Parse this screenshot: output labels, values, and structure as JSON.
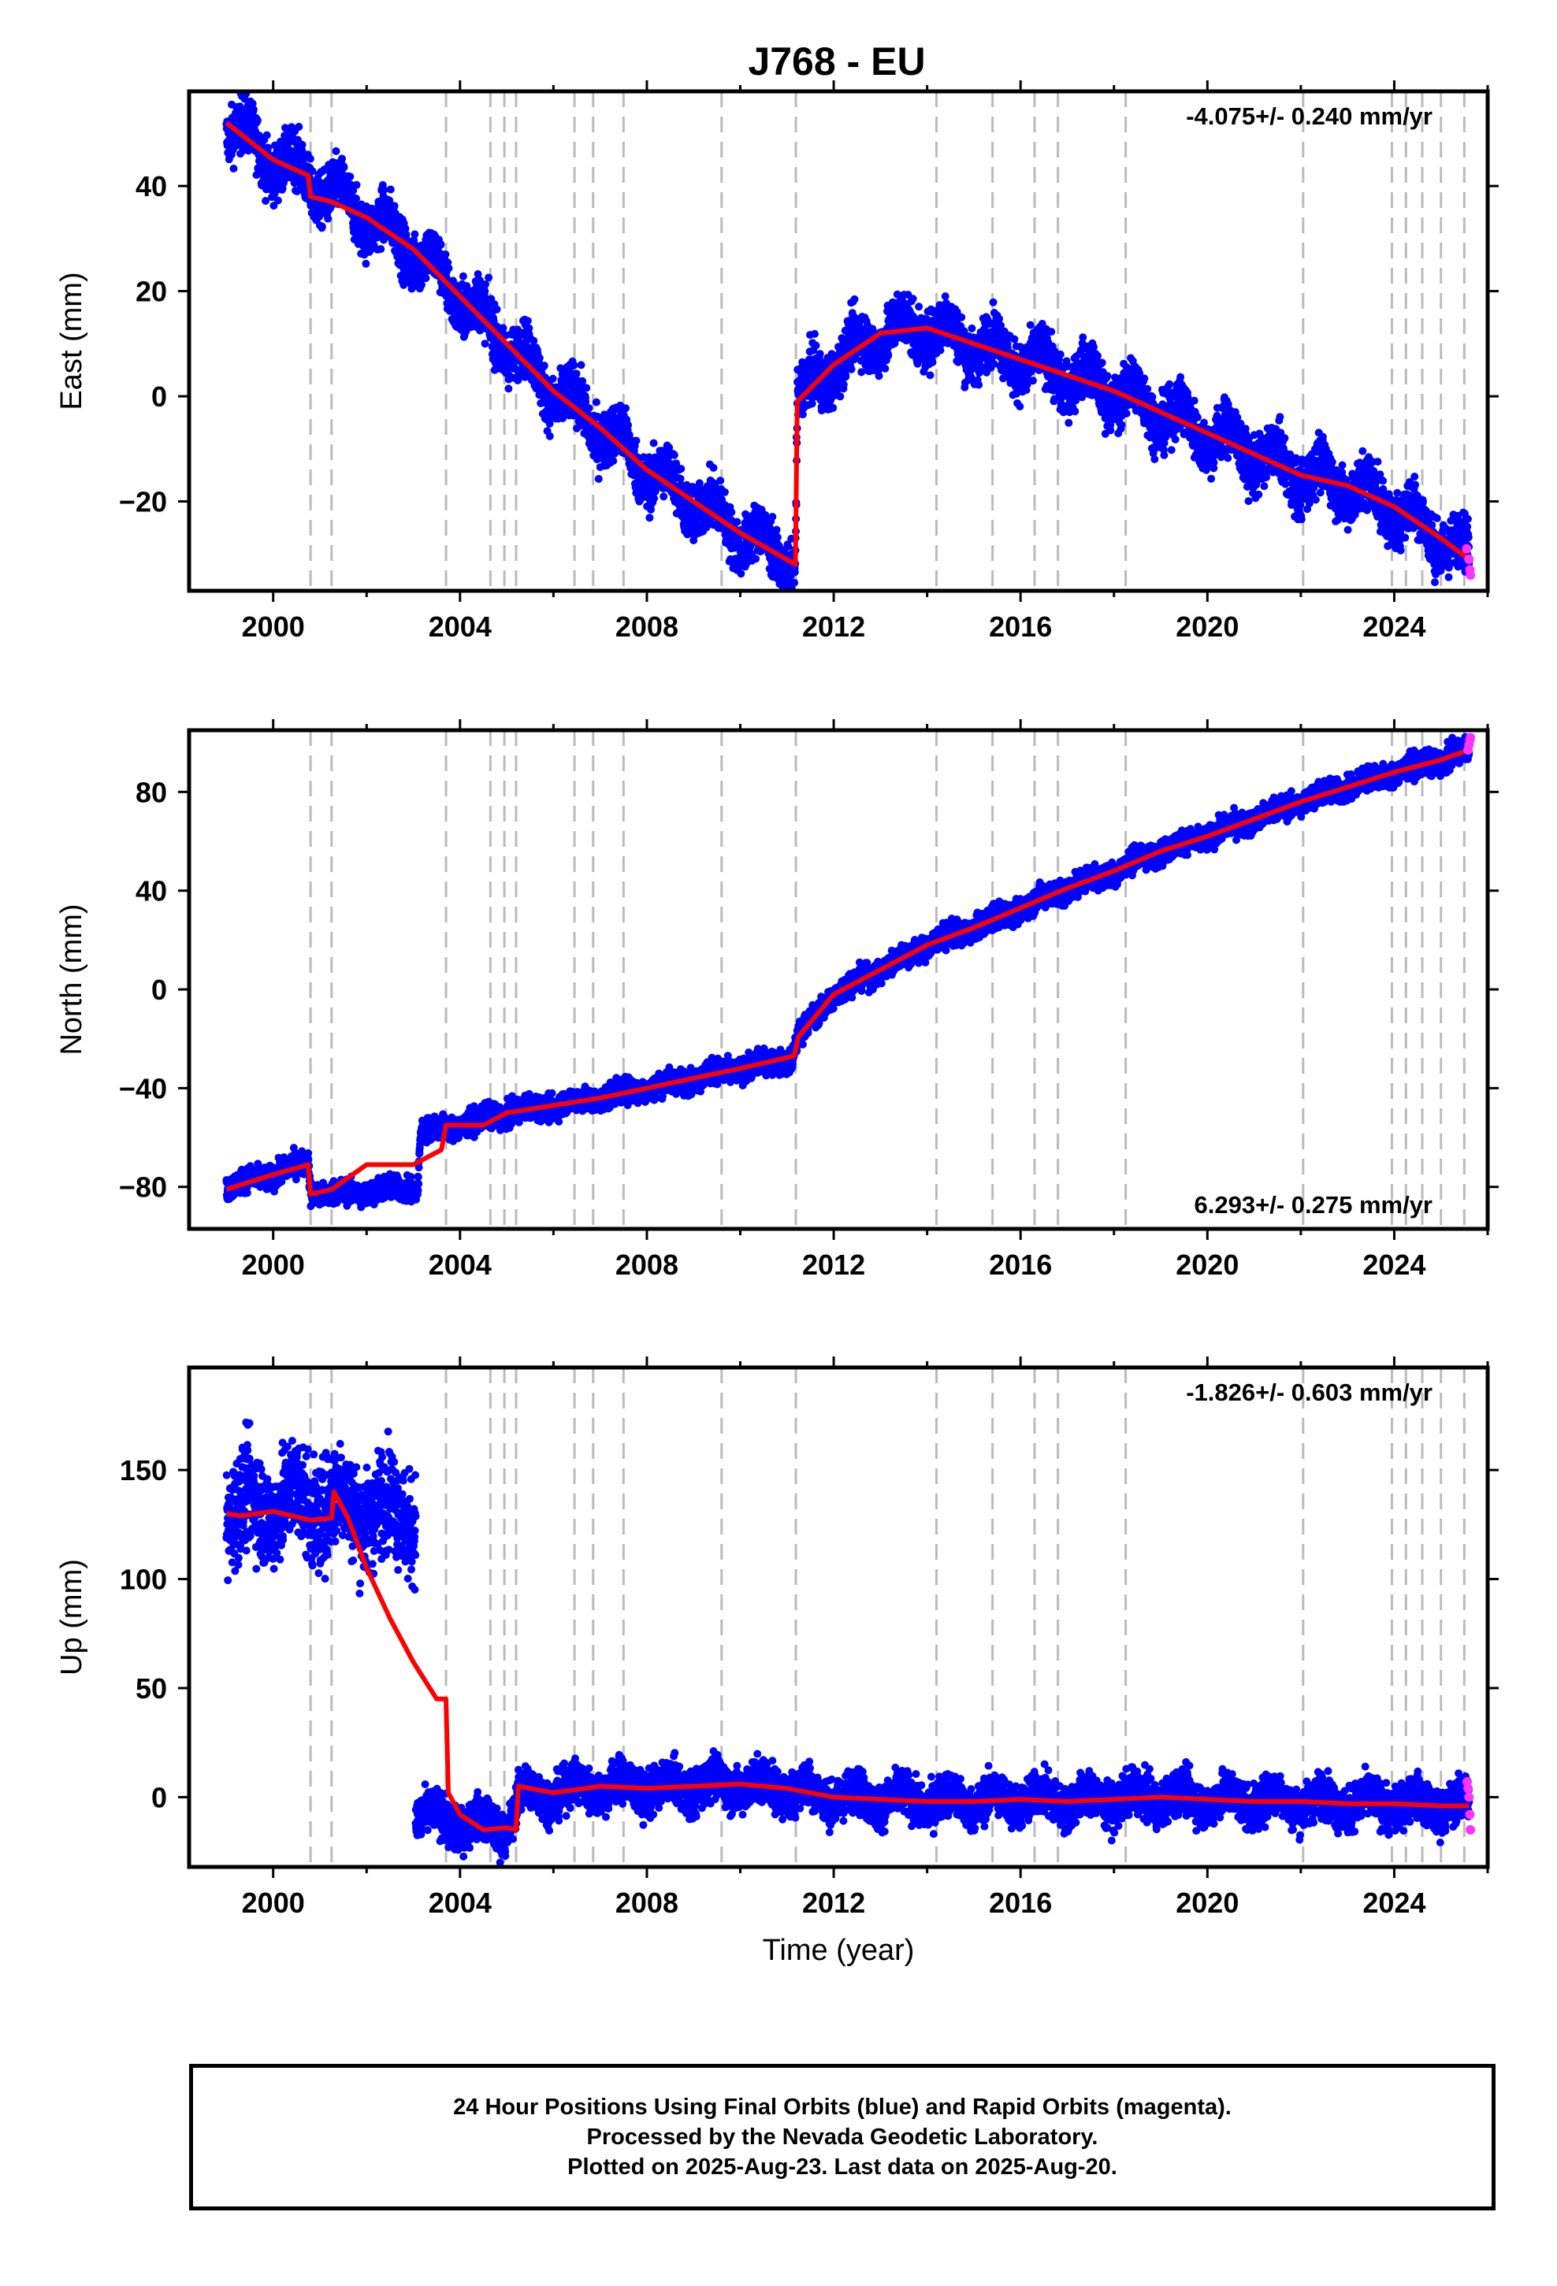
{
  "title": "J768 - EU",
  "colors": {
    "final": "#0000ff",
    "rapid": "#ff33ff",
    "model": "#ff0000",
    "grid": "#bbbbbb",
    "frame": "#000000"
  },
  "chart_data": [
    {
      "type": "scatter",
      "ylabel": "East (mm)",
      "xlim": [
        1998.2,
        2026.0
      ],
      "ylim": [
        -37,
        58
      ],
      "yticks": [
        -20,
        0,
        20,
        40
      ],
      "xticks": [
        2000,
        2004,
        2008,
        2012,
        2016,
        2020,
        2024
      ],
      "rate_label": "-4.075+/- 0.240 mm/yr",
      "rate_position": "top-right",
      "offsets": [
        2000.8,
        2001.25,
        2003.7,
        2004.65,
        2004.95,
        2005.2,
        2006.45,
        2006.85,
        2007.5,
        2009.6,
        2011.19,
        2014.2,
        2015.4,
        2016.3,
        2016.8,
        2018.25,
        2022.05,
        2023.95,
        2024.25,
        2024.6,
        2025.0,
        2025.5
      ],
      "series": [
        {
          "name": "Final Orbits",
          "trend": [
            [
              1999.0,
              52
            ],
            [
              2000.0,
              45
            ],
            [
              2001.0,
              40
            ],
            [
              2002.0,
              34
            ],
            [
              2003.0,
              28
            ],
            [
              2004.0,
              19
            ],
            [
              2005.0,
              10
            ],
            [
              2006.0,
              1
            ],
            [
              2007.0,
              -6
            ],
            [
              2008.0,
              -14
            ],
            [
              2009.0,
              -20
            ],
            [
              2010.0,
              -26
            ],
            [
              2011.18,
              -32
            ],
            [
              2011.22,
              -1
            ],
            [
              2012.0,
              6
            ],
            [
              2013.0,
              12
            ],
            [
              2014.0,
              13
            ],
            [
              2015.0,
              10
            ],
            [
              2016.0,
              7
            ],
            [
              2017.0,
              4
            ],
            [
              2018.0,
              1
            ],
            [
              2019.0,
              -3
            ],
            [
              2020.0,
              -7
            ],
            [
              2021.0,
              -11
            ],
            [
              2022.0,
              -15
            ],
            [
              2023.0,
              -17
            ],
            [
              2024.0,
              -21
            ],
            [
              2025.0,
              -27
            ],
            [
              2025.6,
              -31
            ]
          ],
          "seasonal_amp": 3,
          "scatter": 2.6
        },
        {
          "name": "Rapid Orbits",
          "points": [
            [
              2025.55,
              -29
            ],
            [
              2025.6,
              -31
            ],
            [
              2025.62,
              -33
            ],
            [
              2025.63,
              -34
            ]
          ]
        }
      ],
      "model": [
        [
          1999.0,
          52
        ],
        [
          2000.0,
          45
        ],
        [
          2000.75,
          42
        ],
        [
          2000.8,
          38
        ],
        [
          2001.25,
          37
        ],
        [
          2002.0,
          34
        ],
        [
          2003.0,
          28
        ],
        [
          2004.0,
          19
        ],
        [
          2005.0,
          10
        ],
        [
          2006.0,
          1
        ],
        [
          2007.0,
          -6
        ],
        [
          2008.0,
          -14
        ],
        [
          2009.0,
          -20
        ],
        [
          2010.0,
          -26
        ],
        [
          2011.18,
          -32
        ],
        [
          2011.22,
          -1
        ],
        [
          2012.0,
          6
        ],
        [
          2013.0,
          12
        ],
        [
          2014.0,
          13
        ],
        [
          2015.0,
          10
        ],
        [
          2016.0,
          7
        ],
        [
          2017.0,
          4
        ],
        [
          2018.0,
          1
        ],
        [
          2019.0,
          -3
        ],
        [
          2020.0,
          -7
        ],
        [
          2021.0,
          -11
        ],
        [
          2022.0,
          -15
        ],
        [
          2023.0,
          -17
        ],
        [
          2024.0,
          -21
        ],
        [
          2025.0,
          -27
        ],
        [
          2025.6,
          -31
        ]
      ]
    },
    {
      "type": "scatter",
      "ylabel": "North (mm)",
      "xlim": [
        1998.2,
        2026.0
      ],
      "ylim": [
        -97,
        105
      ],
      "yticks": [
        -80,
        -40,
        0,
        40,
        80
      ],
      "xticks": [
        2000,
        2004,
        2008,
        2012,
        2016,
        2020,
        2024
      ],
      "rate_label": "6.293+/- 0.275 mm/yr",
      "rate_position": "bottom-right",
      "offsets": [
        2000.8,
        2001.25,
        2003.7,
        2004.65,
        2004.95,
        2005.2,
        2006.45,
        2006.85,
        2007.5,
        2009.6,
        2011.19,
        2014.2,
        2015.4,
        2016.3,
        2016.8,
        2018.25,
        2022.05,
        2023.95,
        2024.25,
        2024.6,
        2025.0,
        2025.5
      ],
      "series": [
        {
          "name": "Final Orbits",
          "trend": [
            [
              1999.0,
              -80
            ],
            [
              2000.0,
              -75
            ],
            [
              2000.75,
              -70
            ],
            [
              2000.8,
              -82
            ],
            [
              2001.25,
              -83
            ],
            [
              2002.0,
              -82
            ],
            [
              2003.1,
              -80
            ],
            [
              2003.15,
              -58
            ],
            [
              2004.0,
              -55
            ],
            [
              2005.0,
              -50
            ],
            [
              2006.0,
              -47
            ],
            [
              2007.0,
              -44
            ],
            [
              2008.0,
              -40
            ],
            [
              2009.0,
              -36
            ],
            [
              2010.0,
              -32
            ],
            [
              2011.1,
              -28
            ],
            [
              2011.25,
              -19
            ],
            [
              2012.0,
              -2
            ],
            [
              2013.0,
              8
            ],
            [
              2014.0,
              18
            ],
            [
              2015.0,
              25
            ],
            [
              2016.0,
              33
            ],
            [
              2017.0,
              41
            ],
            [
              2018.0,
              48
            ],
            [
              2019.0,
              56
            ],
            [
              2020.0,
              62
            ],
            [
              2021.0,
              69
            ],
            [
              2022.0,
              76
            ],
            [
              2023.0,
              82
            ],
            [
              2024.0,
              88
            ],
            [
              2025.0,
              93
            ],
            [
              2025.6,
              97
            ]
          ],
          "seasonal_amp": 1.2,
          "scatter": 2.4
        },
        {
          "name": "Rapid Orbits",
          "points": [
            [
              2025.58,
              97
            ],
            [
              2025.6,
              99
            ],
            [
              2025.62,
              101
            ],
            [
              2025.63,
              102
            ]
          ]
        }
      ],
      "model": [
        [
          1999.0,
          -81
        ],
        [
          2000.0,
          -75
        ],
        [
          2000.75,
          -71
        ],
        [
          2000.8,
          -83
        ],
        [
          2001.25,
          -81
        ],
        [
          2002.0,
          -71
        ],
        [
          2003.0,
          -71
        ],
        [
          2003.6,
          -65
        ],
        [
          2003.7,
          -55
        ],
        [
          2004.5,
          -55
        ],
        [
          2005.0,
          -50
        ],
        [
          2006.0,
          -47
        ],
        [
          2007.0,
          -44
        ],
        [
          2008.0,
          -40
        ],
        [
          2009.0,
          -36
        ],
        [
          2010.0,
          -32
        ],
        [
          2011.15,
          -27
        ],
        [
          2011.25,
          -19
        ],
        [
          2012.0,
          -2
        ],
        [
          2013.0,
          8
        ],
        [
          2014.0,
          18
        ],
        [
          2015.0,
          25
        ],
        [
          2016.0,
          33
        ],
        [
          2017.0,
          41
        ],
        [
          2018.0,
          48
        ],
        [
          2019.0,
          56
        ],
        [
          2020.0,
          62
        ],
        [
          2021.0,
          69
        ],
        [
          2022.0,
          76
        ],
        [
          2023.0,
          82
        ],
        [
          2024.0,
          88
        ],
        [
          2025.0,
          93
        ],
        [
          2025.6,
          97
        ]
      ]
    },
    {
      "type": "scatter",
      "ylabel": "Up (mm)",
      "xlabel": "Time (year)",
      "xlim": [
        1998.2,
        2026.0
      ],
      "ylim": [
        -32,
        197
      ],
      "yticks": [
        0,
        50,
        100,
        150
      ],
      "xticks": [
        2000,
        2004,
        2008,
        2012,
        2016,
        2020,
        2024
      ],
      "rate_label": "-1.826+/- 0.603 mm/yr",
      "rate_position": "top-right",
      "offsets": [
        2000.8,
        2001.25,
        2003.7,
        2004.65,
        2004.95,
        2005.2,
        2006.45,
        2006.85,
        2007.5,
        2009.6,
        2011.19,
        2014.2,
        2015.4,
        2016.3,
        2016.8,
        2018.25,
        2022.05,
        2023.95,
        2024.25,
        2024.6,
        2025.0,
        2025.5
      ],
      "series": [
        {
          "name": "Final Orbits",
          "trend": [
            [
              1999.0,
              130
            ],
            [
              2000.0,
              135
            ],
            [
              2001.0,
              135
            ],
            [
              2002.0,
              132
            ],
            [
              2003.05,
              130
            ]
          ],
          "seasonal_amp": 8,
          "scatter": 12
        },
        {
          "name": "Final Orbits",
          "trend": [
            [
              2003.05,
              -8
            ],
            [
              2004.0,
              -12
            ],
            [
              2005.0,
              -14
            ],
            [
              2005.25,
              0
            ],
            [
              2006.0,
              2
            ],
            [
              2007.0,
              5
            ],
            [
              2008.0,
              4
            ],
            [
              2009.0,
              5
            ],
            [
              2010.0,
              6
            ],
            [
              2011.0,
              4
            ],
            [
              2012.0,
              0
            ],
            [
              2013.0,
              -1
            ],
            [
              2014.0,
              -2
            ],
            [
              2015.0,
              -2
            ],
            [
              2016.0,
              -1
            ],
            [
              2017.0,
              -2
            ],
            [
              2018.0,
              -1
            ],
            [
              2019.0,
              0
            ],
            [
              2020.0,
              -1
            ],
            [
              2021.0,
              -2
            ],
            [
              2022.0,
              -2
            ],
            [
              2023.0,
              -3
            ],
            [
              2024.0,
              -3
            ],
            [
              2025.0,
              -4
            ],
            [
              2025.6,
              -4
            ]
          ],
          "seasonal_amp": 4,
          "scatter": 5
        },
        {
          "name": "Rapid Orbits",
          "points": [
            [
              2025.56,
              7
            ],
            [
              2025.58,
              4
            ],
            [
              2025.6,
              0
            ],
            [
              2025.62,
              -8
            ],
            [
              2025.63,
              -15
            ]
          ]
        }
      ],
      "model": [
        [
          1999.0,
          130
        ],
        [
          1999.3,
          129
        ],
        [
          2000.0,
          131
        ],
        [
          2000.8,
          127
        ],
        [
          2001.25,
          128
        ],
        [
          2001.3,
          140
        ],
        [
          2001.6,
          128
        ],
        [
          2002.0,
          105
        ],
        [
          2002.5,
          82
        ],
        [
          2003.0,
          62
        ],
        [
          2003.5,
          45
        ],
        [
          2003.7,
          45
        ],
        [
          2003.75,
          2
        ],
        [
          2004.0,
          -8
        ],
        [
          2004.5,
          -15
        ],
        [
          2005.0,
          -14
        ],
        [
          2005.2,
          -15
        ],
        [
          2005.25,
          5
        ],
        [
          2006.0,
          2
        ],
        [
          2007.0,
          5
        ],
        [
          2008.0,
          4
        ],
        [
          2009.0,
          5
        ],
        [
          2010.0,
          6
        ],
        [
          2011.0,
          4
        ],
        [
          2012.0,
          0
        ],
        [
          2013.0,
          -1
        ],
        [
          2014.0,
          -2
        ],
        [
          2015.0,
          -2
        ],
        [
          2016.0,
          -1
        ],
        [
          2017.0,
          -2
        ],
        [
          2018.0,
          -1
        ],
        [
          2019.0,
          0
        ],
        [
          2020.0,
          -1
        ],
        [
          2021.0,
          -2
        ],
        [
          2022.0,
          -2
        ],
        [
          2023.0,
          -3
        ],
        [
          2024.0,
          -3
        ],
        [
          2025.0,
          -4
        ],
        [
          2025.6,
          -4
        ]
      ]
    }
  ],
  "footer": {
    "line1": "24 Hour Positions Using Final Orbits (blue) and Rapid Orbits (magenta).",
    "line2": "Processed by the Nevada Geodetic Laboratory.",
    "line3": "Plotted on 2025-Aug-23. Last data on 2025-Aug-20."
  }
}
